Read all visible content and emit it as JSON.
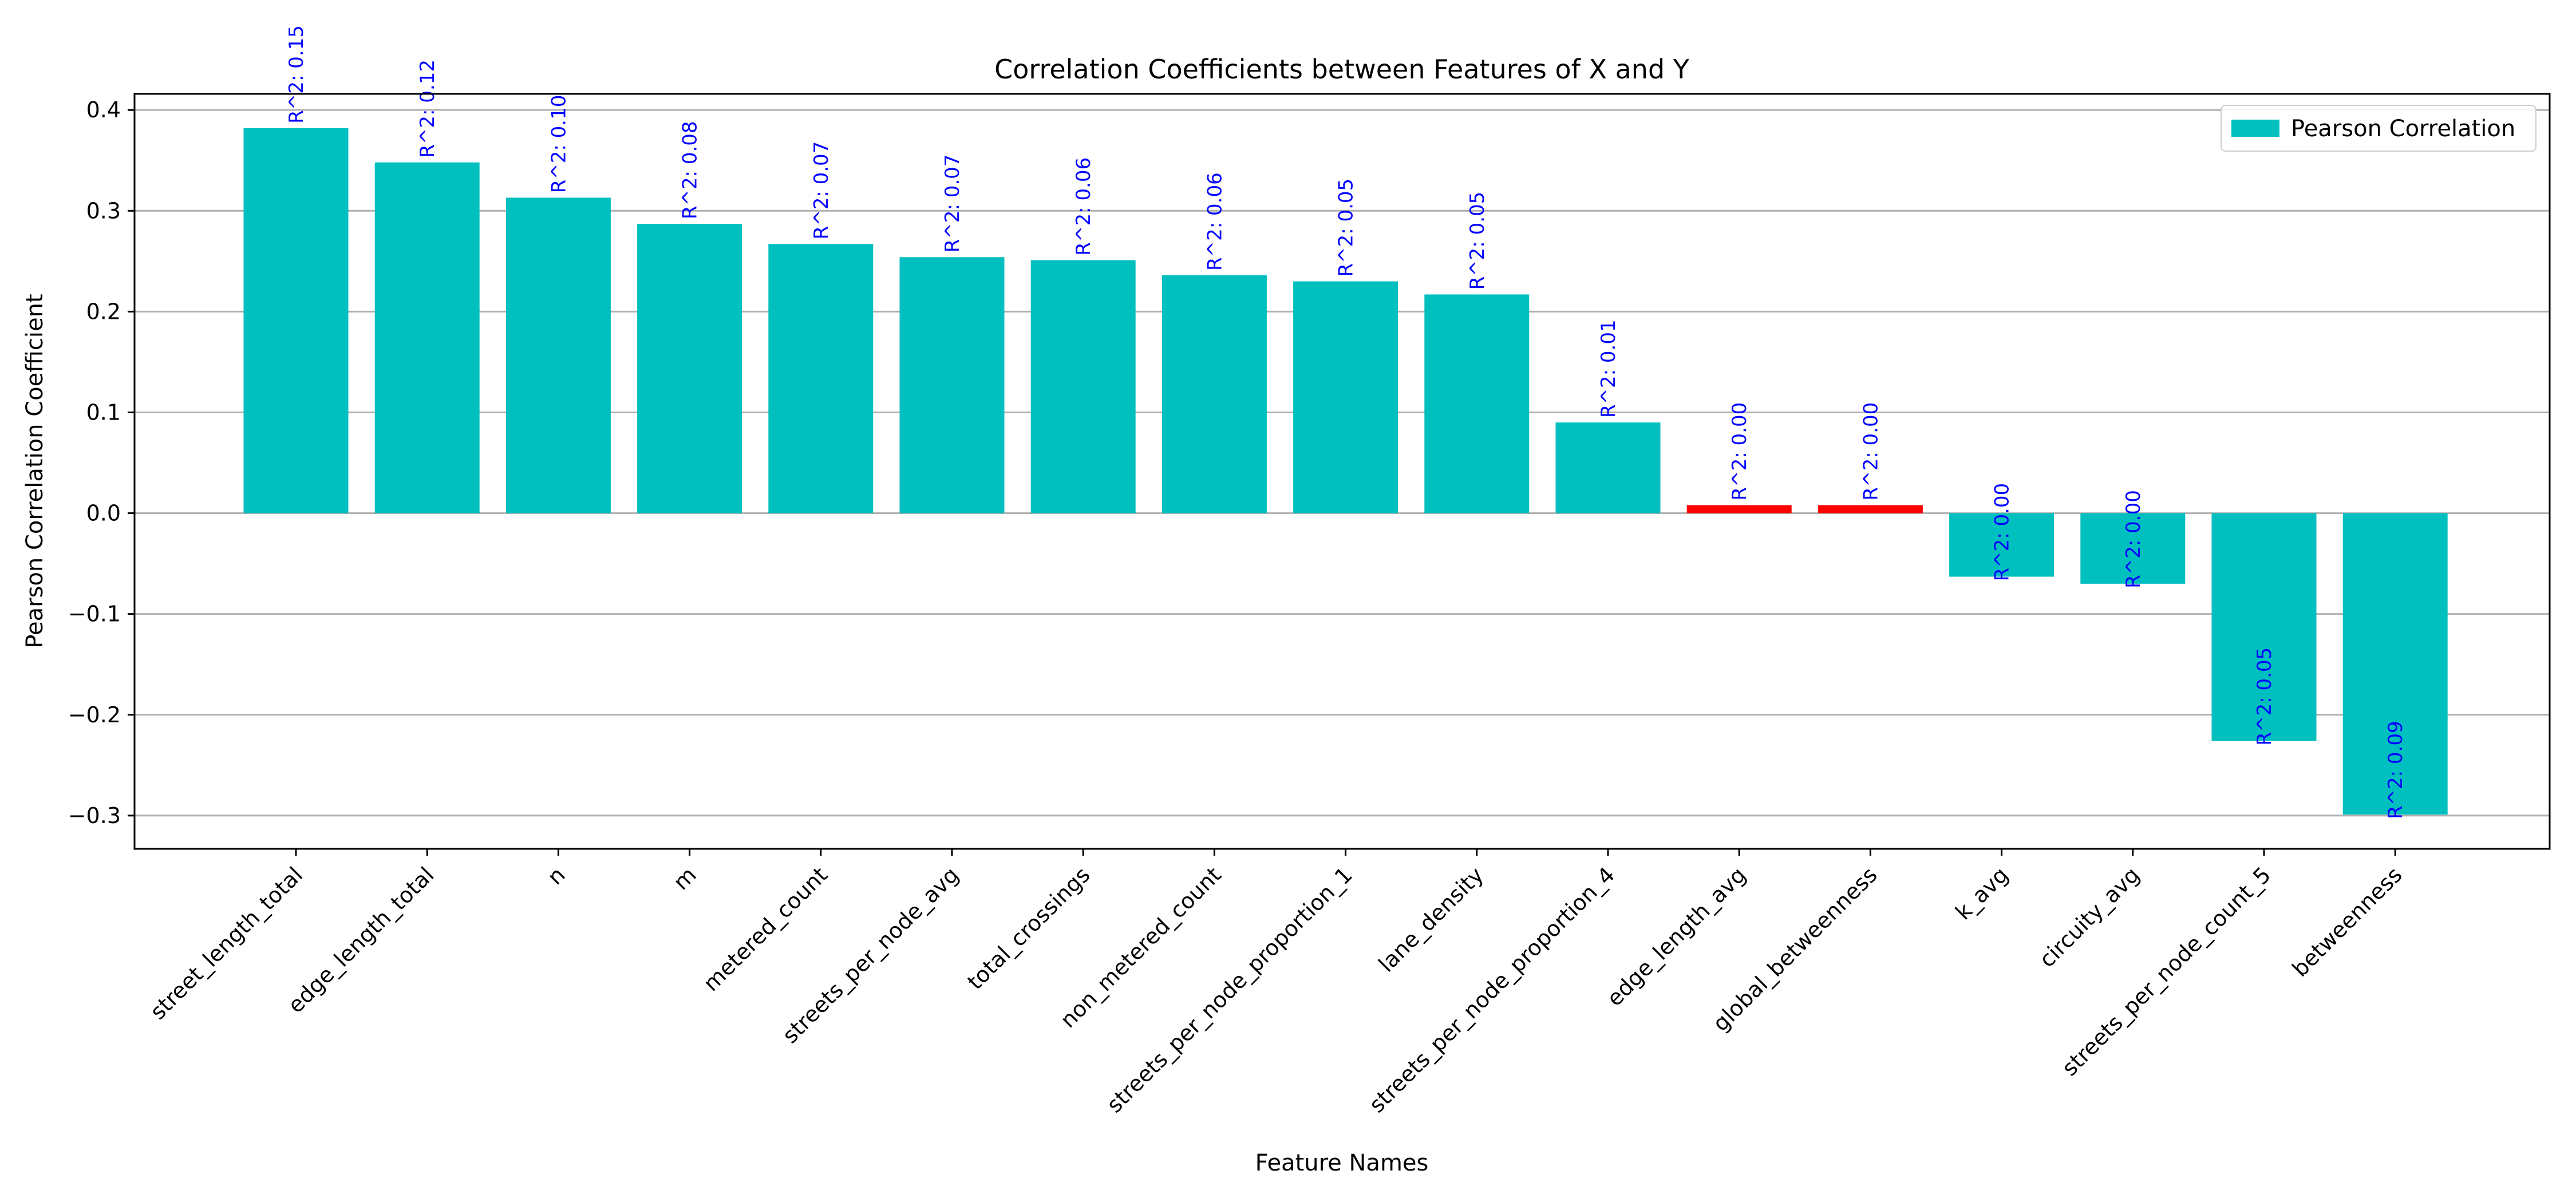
{
  "chart_data": {
    "type": "bar",
    "title": "Correlation Coefficients between Features of X and Y",
    "xlabel": "Feature Names",
    "ylabel": "Pearson Correlation Coefficient",
    "ylim": [
      -0.333,
      0.416
    ],
    "yticks": [
      0.4,
      0.3,
      0.2,
      0.1,
      0.0,
      -0.1,
      -0.2,
      -0.3
    ],
    "ytick_labels": [
      "0.4",
      "0.3",
      "0.2",
      "0.1",
      "0.0",
      "−0.1",
      "−0.2",
      "−0.3"
    ],
    "grid": "horizontal",
    "legend_position": "top-right",
    "series": [
      {
        "name": "Pearson Correlation",
        "color": "#00bfbf",
        "highlight_color": "#ff0000",
        "annotation_color": "#0000ff",
        "categories": [
          "street_length_total",
          "edge_length_total",
          "n",
          "m",
          "metered_count",
          "streets_per_node_avg",
          "total_crossings",
          "non_metered_count",
          "streets_per_node_proportion_1",
          "lane_density",
          "streets_per_node_proportion_4",
          "edge_length_avg",
          "global_betweenness",
          "k_avg",
          "circuity_avg",
          "streets_per_node_count_5",
          "betweenness"
        ],
        "values": [
          0.382,
          0.348,
          0.313,
          0.287,
          0.267,
          0.254,
          0.251,
          0.236,
          0.23,
          0.217,
          0.09,
          0.008,
          0.008,
          -0.063,
          -0.07,
          -0.226,
          -0.299
        ],
        "highlighted": [
          false,
          false,
          false,
          false,
          false,
          false,
          false,
          false,
          false,
          false,
          false,
          true,
          true,
          false,
          false,
          false,
          false
        ],
        "annotations": [
          "R^2: 0.15",
          "R^2: 0.12",
          "R^2: 0.10",
          "R^2: 0.08",
          "R^2: 0.07",
          "R^2: 0.07",
          "R^2: 0.06",
          "R^2: 0.06",
          "R^2: 0.05",
          "R^2: 0.05",
          "R^2: 0.01",
          "R^2: 0.00",
          "R^2: 0.00",
          "R^2: 0.00",
          "R^2: 0.00",
          "R^2: 0.05",
          "R^2: 0.09"
        ]
      }
    ]
  }
}
